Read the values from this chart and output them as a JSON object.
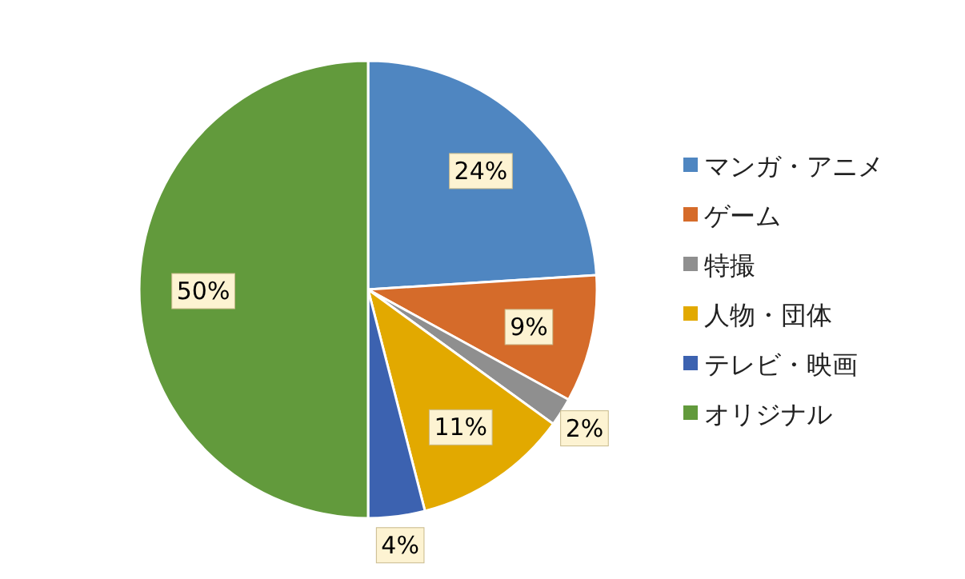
{
  "chart_data": {
    "type": "pie",
    "categories": [
      "マンガ・アニメ",
      "ゲーム",
      "特撮",
      "人物・団体",
      "テレビ・映画",
      "オリジナル"
    ],
    "values": [
      24,
      9,
      2,
      11,
      4,
      50
    ],
    "colors": [
      "#4f86c1",
      "#d56b2a",
      "#8f8f8f",
      "#e2a900",
      "#3c62b0",
      "#629a3c"
    ],
    "value_labels": [
      "24%",
      "9%",
      "2%",
      "11%",
      "4%",
      "50%"
    ],
    "legend": "right"
  }
}
